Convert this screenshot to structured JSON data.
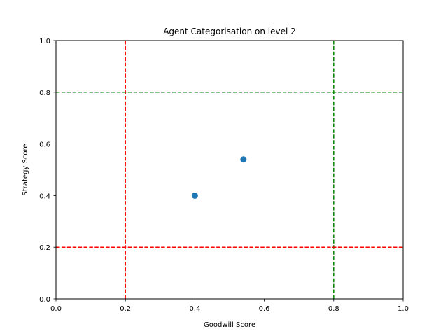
{
  "chart_data": {
    "type": "scatter",
    "title": "Agent Categorisation on level 2",
    "xlabel": "Goodwill Score",
    "ylabel": "Strategy Score",
    "xlim": [
      0.0,
      1.0
    ],
    "ylim": [
      0.0,
      1.0
    ],
    "grid": false,
    "xticks": [
      "0.0",
      "0.2",
      "0.4",
      "0.6",
      "0.8",
      "1.0"
    ],
    "yticks": [
      "0.0",
      "0.2",
      "0.4",
      "0.6",
      "0.8",
      "1.0"
    ],
    "points": [
      {
        "x": 0.4,
        "y": 0.4
      },
      {
        "x": 0.54,
        "y": 0.54
      }
    ],
    "point_color": "#1f77b4",
    "reference_lines": [
      {
        "orientation": "vertical",
        "value": 0.2,
        "color": "#ff0000",
        "style": "dashed"
      },
      {
        "orientation": "vertical",
        "value": 0.8,
        "color": "#008000",
        "style": "dashed"
      },
      {
        "orientation": "horizontal",
        "value": 0.2,
        "color": "#ff0000",
        "style": "dashed"
      },
      {
        "orientation": "horizontal",
        "value": 0.8,
        "color": "#008000",
        "style": "dashed"
      }
    ]
  }
}
